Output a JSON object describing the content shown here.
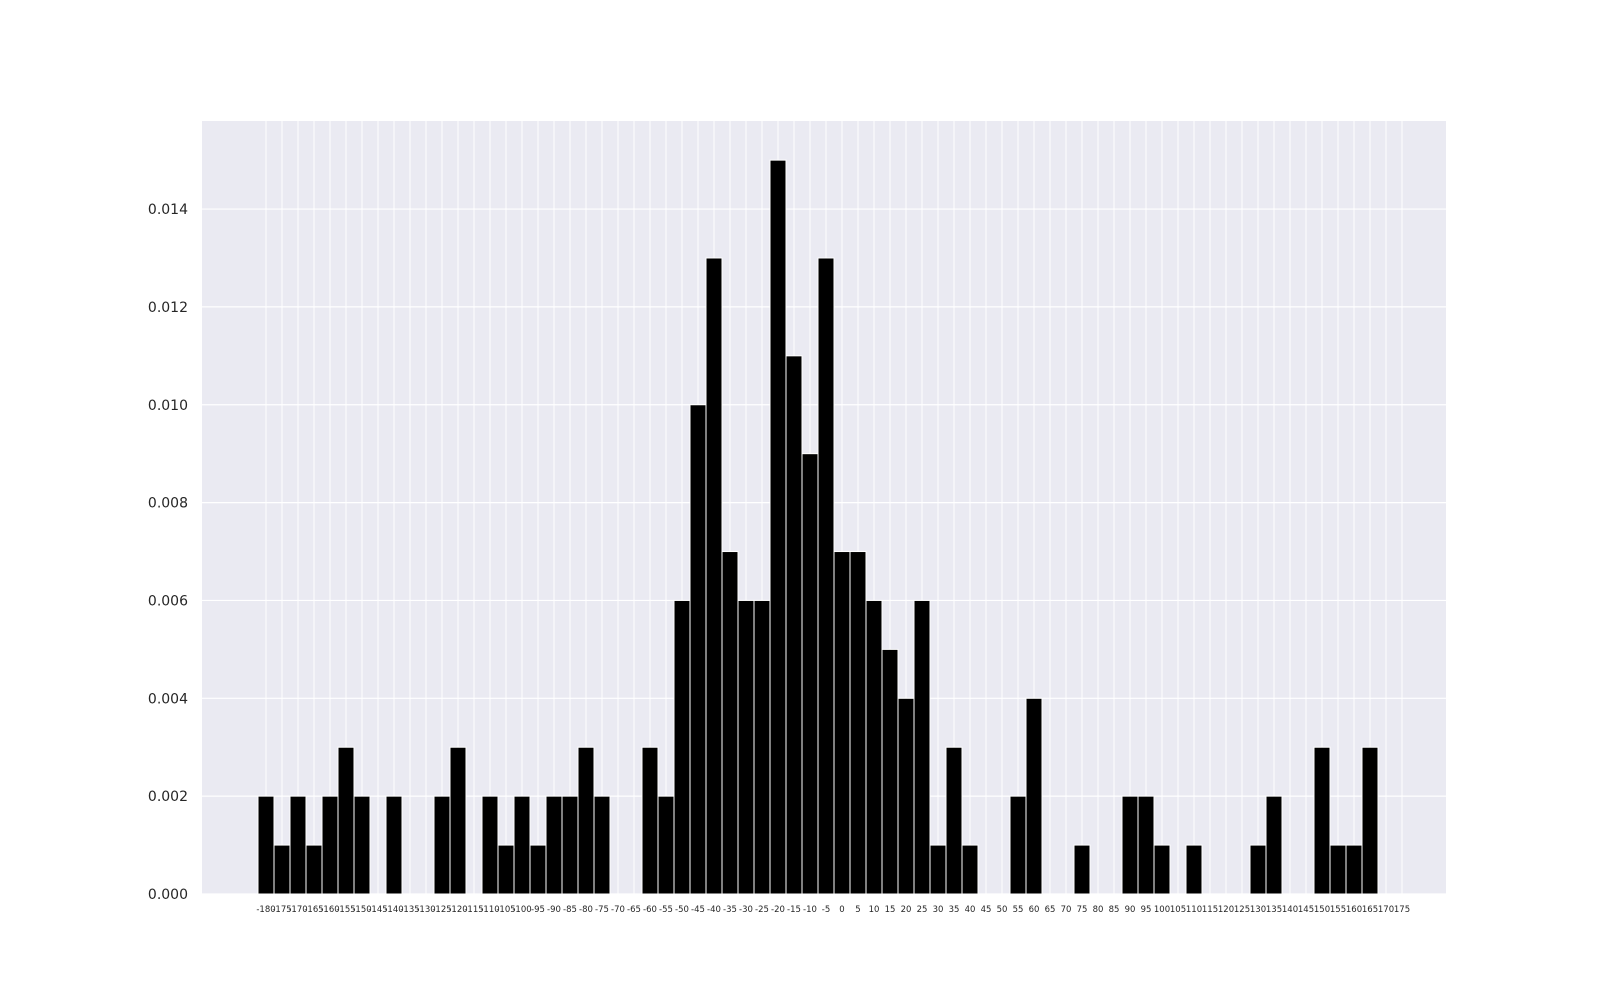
{
  "chart_data": {
    "type": "bar",
    "title": "",
    "xlabel": "",
    "ylabel": "",
    "ylim": [
      0,
      0.0158
    ],
    "grid": true,
    "legend": "none",
    "bar_color": "#000000",
    "background_color": "#eaeaf2",
    "grid_color": "#ffffff",
    "yticks": [
      "0.000",
      "0.002",
      "0.004",
      "0.006",
      "0.008",
      "0.010",
      "0.012",
      "0.014"
    ],
    "categories": [
      "-180",
      "-175",
      "-170",
      "-165",
      "-160",
      "-155",
      "-150",
      "-145",
      "-140",
      "-135",
      "-130",
      "-125",
      "-120",
      "-115",
      "-110",
      "-105",
      "-100",
      "-95",
      "-90",
      "-85",
      "-80",
      "-75",
      "-70",
      "-65",
      "-60",
      "-55",
      "-50",
      "-45",
      "-40",
      "-35",
      "-30",
      "-25",
      "-20",
      "-15",
      "-10",
      "-5",
      "0",
      "5",
      "10",
      "15",
      "20",
      "25",
      "30",
      "35",
      "40",
      "45",
      "50",
      "55",
      "60",
      "65",
      "70",
      "75",
      "80",
      "85",
      "90",
      "95",
      "100",
      "105",
      "110",
      "115",
      "120",
      "125",
      "130",
      "135",
      "140",
      "145",
      "150",
      "155",
      "160",
      "165",
      "170",
      "175"
    ],
    "values": [
      0.002,
      0.001,
      0.002,
      0.001,
      0.002,
      0.003,
      0.002,
      0.0,
      0.002,
      0.0,
      0.0,
      0.002,
      0.003,
      0.0,
      0.002,
      0.001,
      0.002,
      0.001,
      0.002,
      0.002,
      0.003,
      0.002,
      0.0,
      0.0,
      0.003,
      0.002,
      0.006,
      0.01,
      0.013,
      0.007,
      0.006,
      0.006,
      0.015,
      0.011,
      0.009,
      0.013,
      0.007,
      0.007,
      0.006,
      0.005,
      0.004,
      0.006,
      0.001,
      0.003,
      0.001,
      0.0,
      0.0,
      0.002,
      0.004,
      0.0,
      0.0,
      0.001,
      0.0,
      0.0,
      0.002,
      0.002,
      0.001,
      0.0,
      0.001,
      0.0,
      0.0,
      0.0,
      0.001,
      0.002,
      0.0,
      0.0,
      0.003,
      0.001,
      0.001,
      0.003,
      0.0,
      0.0
    ]
  }
}
